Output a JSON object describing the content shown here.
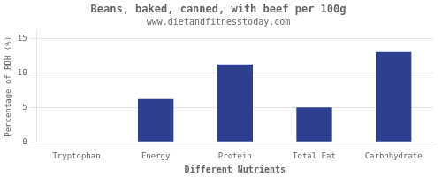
{
  "chart_data": {
    "type": "bar",
    "title": "Beans, baked, canned, with beef per 100g",
    "subtitle": "www.dietandfitnesstoday.com",
    "xlabel": "Different Nutrients",
    "ylabel": "Percentage of RDH (%)",
    "categories": [
      "Tryptophan",
      "Energy",
      "Protein",
      "Total Fat",
      "Carbohydrate"
    ],
    "values": [
      0,
      6.2,
      11.2,
      5.0,
      13.0
    ],
    "color": "#2e3f8f",
    "ylim": [
      0,
      16
    ],
    "yticks": [
      0,
      5,
      10,
      15
    ],
    "grid": true
  }
}
